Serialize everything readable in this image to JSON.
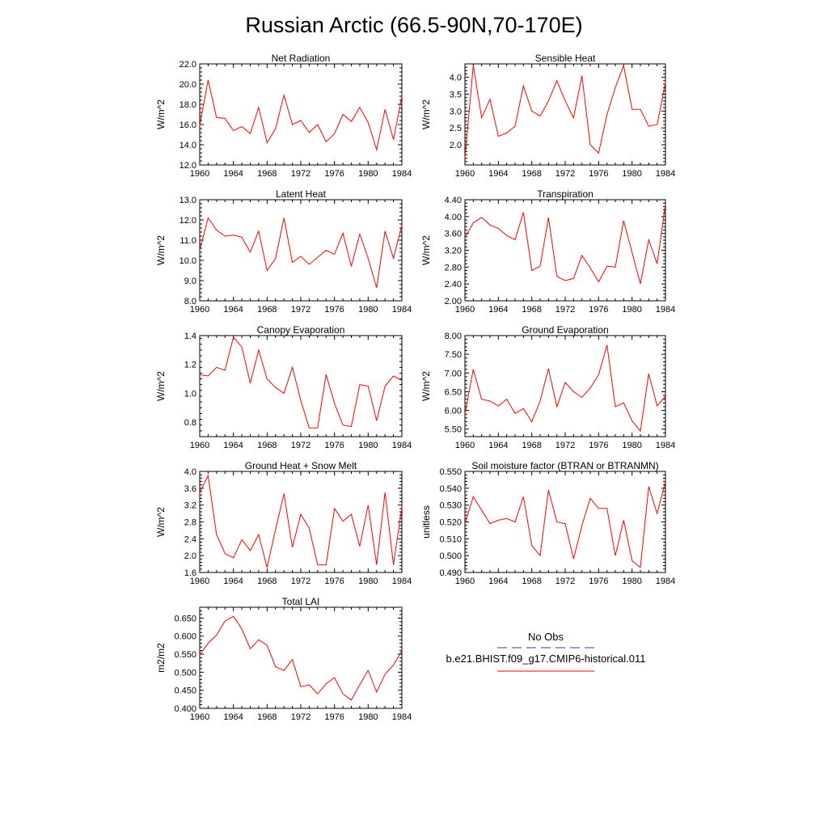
{
  "figure": {
    "title": "Russian Arctic (66.5-90N,70-170E)"
  },
  "legend": {
    "obs_label": "No Obs",
    "model_label": "b.e21.BHIST.f09_g17.CMIP6-historical.011",
    "obs_color": "#3a3a8c",
    "model_color": "#ff0000"
  },
  "chart_data": [
    {
      "type": "line",
      "title": "Net Radiation",
      "ylabel": "W/m^2",
      "xlim": [
        1960,
        1984
      ],
      "ylim": [
        12.0,
        22.0
      ],
      "xticks": [
        1960,
        1964,
        1968,
        1972,
        1976,
        1980,
        1984
      ],
      "yticks": [
        "12.0",
        "14.0",
        "16.0",
        "18.0",
        "20.0",
        "22.0"
      ],
      "x": [
        1960,
        1961,
        1962,
        1963,
        1964,
        1965,
        1966,
        1967,
        1968,
        1969,
        1970,
        1971,
        1972,
        1973,
        1974,
        1975,
        1976,
        1977,
        1978,
        1979,
        1980,
        1981,
        1982,
        1983,
        1984
      ],
      "series": [
        {
          "name": "b.e21.BHIST.f09_g17.CMIP6-historical.011",
          "values": [
            15.9,
            20.4,
            16.7,
            16.6,
            15.4,
            15.8,
            15.1,
            17.7,
            14.2,
            15.6,
            18.9,
            16.0,
            16.4,
            15.2,
            16.0,
            14.3,
            15.1,
            17.0,
            16.3,
            17.7,
            16.2,
            13.5,
            17.5,
            14.5,
            18.8
          ]
        }
      ]
    },
    {
      "type": "line",
      "title": "Sensible Heat",
      "ylabel": "W/m^2",
      "xlim": [
        1960,
        1984
      ],
      "ylim": [
        1.4,
        4.4
      ],
      "xticks": [
        1960,
        1964,
        1968,
        1972,
        1976,
        1980,
        1984
      ],
      "yticks": [
        "2.0",
        "2.5",
        "3.0",
        "3.5",
        "4.0"
      ],
      "x": [
        1960,
        1961,
        1962,
        1963,
        1964,
        1965,
        1966,
        1967,
        1968,
        1969,
        1970,
        1971,
        1972,
        1973,
        1974,
        1975,
        1976,
        1977,
        1978,
        1979,
        1980,
        1981,
        1982,
        1983,
        1984
      ],
      "series": [
        {
          "name": "b.e21.BHIST.f09_g17.CMIP6-historical.011",
          "values": [
            1.6,
            4.35,
            2.8,
            3.35,
            2.25,
            2.35,
            2.55,
            3.75,
            3.0,
            2.85,
            3.3,
            3.9,
            3.3,
            2.8,
            4.05,
            2.0,
            1.75,
            2.9,
            3.7,
            4.35,
            3.05,
            3.05,
            2.55,
            2.6,
            3.85
          ]
        }
      ]
    },
    {
      "type": "line",
      "title": "Latent Heat",
      "ylabel": "W/m^2",
      "xlim": [
        1960,
        1984
      ],
      "ylim": [
        8.0,
        13.0
      ],
      "xticks": [
        1960,
        1964,
        1968,
        1972,
        1976,
        1980,
        1984
      ],
      "yticks": [
        "8.0",
        "9.0",
        "10.0",
        "11.0",
        "12.0",
        "13.0"
      ],
      "x": [
        1960,
        1961,
        1962,
        1963,
        1964,
        1965,
        1966,
        1967,
        1968,
        1969,
        1970,
        1971,
        1972,
        1973,
        1974,
        1975,
        1976,
        1977,
        1978,
        1979,
        1980,
        1981,
        1982,
        1983,
        1984
      ],
      "series": [
        {
          "name": "b.e21.BHIST.f09_g17.CMIP6-historical.011",
          "values": [
            10.5,
            12.1,
            11.5,
            11.2,
            11.25,
            11.15,
            10.4,
            11.45,
            9.5,
            10.1,
            12.1,
            9.9,
            10.2,
            9.8,
            10.15,
            10.5,
            10.3,
            11.35,
            9.7,
            11.3,
            10.1,
            8.65,
            11.45,
            10.1,
            11.75
          ]
        }
      ]
    },
    {
      "type": "line",
      "title": "Transpiration",
      "ylabel": "W/m^2",
      "xlim": [
        1960,
        1984
      ],
      "ylim": [
        2.0,
        4.4
      ],
      "xticks": [
        1960,
        1964,
        1968,
        1972,
        1976,
        1980,
        1984
      ],
      "yticks": [
        "2.00",
        "2.40",
        "2.80",
        "3.20",
        "3.60",
        "4.00",
        "4.40"
      ],
      "x": [
        1960,
        1961,
        1962,
        1963,
        1964,
        1965,
        1966,
        1967,
        1968,
        1969,
        1970,
        1971,
        1972,
        1973,
        1974,
        1975,
        1976,
        1977,
        1978,
        1979,
        1980,
        1981,
        1982,
        1983,
        1984
      ],
      "series": [
        {
          "name": "b.e21.BHIST.f09_g17.CMIP6-historical.011",
          "values": [
            3.5,
            3.85,
            3.98,
            3.8,
            3.72,
            3.55,
            3.45,
            4.1,
            2.72,
            2.82,
            3.98,
            2.58,
            2.48,
            2.53,
            3.08,
            2.78,
            2.45,
            2.82,
            2.8,
            3.9,
            3.15,
            2.4,
            3.45,
            2.88,
            4.3
          ]
        }
      ]
    },
    {
      "type": "line",
      "title": "Canopy Evaporation",
      "ylabel": "W/m^2",
      "xlim": [
        1960,
        1984
      ],
      "ylim": [
        0.7,
        1.4
      ],
      "xticks": [
        1960,
        1964,
        1968,
        1972,
        1976,
        1980,
        1984
      ],
      "yticks": [
        "0.8",
        "1.0",
        "1.2",
        "1.4"
      ],
      "x": [
        1960,
        1961,
        1962,
        1963,
        1964,
        1965,
        1966,
        1967,
        1968,
        1969,
        1970,
        1971,
        1972,
        1973,
        1974,
        1975,
        1976,
        1977,
        1978,
        1979,
        1980,
        1981,
        1982,
        1983,
        1984
      ],
      "series": [
        {
          "name": "b.e21.BHIST.f09_g17.CMIP6-historical.011",
          "values": [
            1.13,
            1.12,
            1.18,
            1.16,
            1.39,
            1.32,
            1.07,
            1.3,
            1.1,
            1.04,
            1.0,
            1.18,
            0.95,
            0.76,
            0.76,
            1.13,
            0.93,
            0.78,
            0.77,
            1.06,
            1.05,
            0.81,
            1.05,
            1.12,
            1.09
          ]
        }
      ]
    },
    {
      "type": "line",
      "title": "Ground Evaporation",
      "ylabel": "W/m^2",
      "xlim": [
        1960,
        1984
      ],
      "ylim": [
        5.3,
        8.0
      ],
      "xticks": [
        1960,
        1964,
        1968,
        1972,
        1976,
        1980,
        1984
      ],
      "yticks": [
        "5.50",
        "6.00",
        "6.50",
        "7.00",
        "7.50",
        "8.00"
      ],
      "x": [
        1960,
        1961,
        1962,
        1963,
        1964,
        1965,
        1966,
        1967,
        1968,
        1969,
        1970,
        1971,
        1972,
        1973,
        1974,
        1975,
        1976,
        1977,
        1978,
        1979,
        1980,
        1981,
        1982,
        1983,
        1984
      ],
      "series": [
        {
          "name": "b.e21.BHIST.f09_g17.CMIP6-historical.011",
          "values": [
            5.9,
            7.1,
            6.3,
            6.25,
            6.12,
            6.3,
            5.92,
            6.05,
            5.7,
            6.25,
            7.12,
            6.1,
            6.75,
            6.5,
            6.35,
            6.6,
            6.95,
            7.75,
            6.1,
            6.2,
            5.72,
            5.45,
            6.98,
            6.12,
            6.38
          ]
        }
      ]
    },
    {
      "type": "line",
      "title": "Ground Heat + Snow Melt",
      "ylabel": "W/m^2",
      "xlim": [
        1960,
        1984
      ],
      "ylim": [
        1.6,
        4.0
      ],
      "xticks": [
        1960,
        1964,
        1968,
        1972,
        1976,
        1980,
        1984
      ],
      "yticks": [
        "1.6",
        "2.0",
        "2.4",
        "2.8",
        "3.2",
        "3.6",
        "4.0"
      ],
      "x": [
        1960,
        1961,
        1962,
        1963,
        1964,
        1965,
        1966,
        1967,
        1968,
        1969,
        1970,
        1971,
        1972,
        1973,
        1974,
        1975,
        1976,
        1977,
        1978,
        1979,
        1980,
        1981,
        1982,
        1983,
        1984
      ],
      "series": [
        {
          "name": "b.e21.BHIST.f09_g17.CMIP6-historical.011",
          "values": [
            3.5,
            3.9,
            2.5,
            2.05,
            1.95,
            2.38,
            2.12,
            2.5,
            1.72,
            2.62,
            3.47,
            2.2,
            2.98,
            2.65,
            1.78,
            1.78,
            3.12,
            2.82,
            2.98,
            2.22,
            3.2,
            1.78,
            3.5,
            1.78,
            3.15
          ]
        }
      ]
    },
    {
      "type": "line",
      "title": "Soil moisture factor (BTRAN or BTRANMN)",
      "ylabel": "unitless",
      "xlim": [
        1960,
        1984
      ],
      "ylim": [
        0.49,
        0.55
      ],
      "xticks": [
        1960,
        1964,
        1968,
        1972,
        1976,
        1980,
        1984
      ],
      "yticks": [
        "0.490",
        "0.500",
        "0.510",
        "0.520",
        "0.530",
        "0.540",
        "0.550"
      ],
      "x": [
        1960,
        1961,
        1962,
        1963,
        1964,
        1965,
        1966,
        1967,
        1968,
        1969,
        1970,
        1971,
        1972,
        1973,
        1974,
        1975,
        1976,
        1977,
        1978,
        1979,
        1980,
        1981,
        1982,
        1983,
        1984
      ],
      "series": [
        {
          "name": "b.e21.BHIST.f09_g17.CMIP6-historical.011",
          "values": [
            0.519,
            0.535,
            0.527,
            0.519,
            0.521,
            0.522,
            0.52,
            0.535,
            0.506,
            0.5,
            0.539,
            0.52,
            0.519,
            0.498,
            0.518,
            0.534,
            0.528,
            0.528,
            0.5,
            0.521,
            0.497,
            0.493,
            0.541,
            0.525,
            0.544
          ]
        }
      ]
    },
    {
      "type": "line",
      "title": "Total LAI",
      "ylabel": "m2/m2",
      "xlim": [
        1960,
        1984
      ],
      "ylim": [
        0.4,
        0.68
      ],
      "xticks": [
        1960,
        1964,
        1968,
        1972,
        1976,
        1980,
        1984
      ],
      "yticks": [
        "0.400",
        "0.450",
        "0.500",
        "0.550",
        "0.600",
        "0.650"
      ],
      "x": [
        1960,
        1961,
        1962,
        1963,
        1964,
        1965,
        1966,
        1967,
        1968,
        1969,
        1970,
        1971,
        1972,
        1973,
        1974,
        1975,
        1976,
        1977,
        1978,
        1979,
        1980,
        1981,
        1982,
        1983,
        1984
      ],
      "series": [
        {
          "name": "b.e21.BHIST.f09_g17.CMIP6-historical.011",
          "values": [
            0.548,
            0.58,
            0.603,
            0.642,
            0.655,
            0.62,
            0.565,
            0.59,
            0.575,
            0.515,
            0.505,
            0.535,
            0.46,
            0.465,
            0.44,
            0.468,
            0.485,
            0.44,
            0.423,
            0.465,
            0.505,
            0.445,
            0.495,
            0.52,
            0.56
          ]
        }
      ]
    }
  ]
}
